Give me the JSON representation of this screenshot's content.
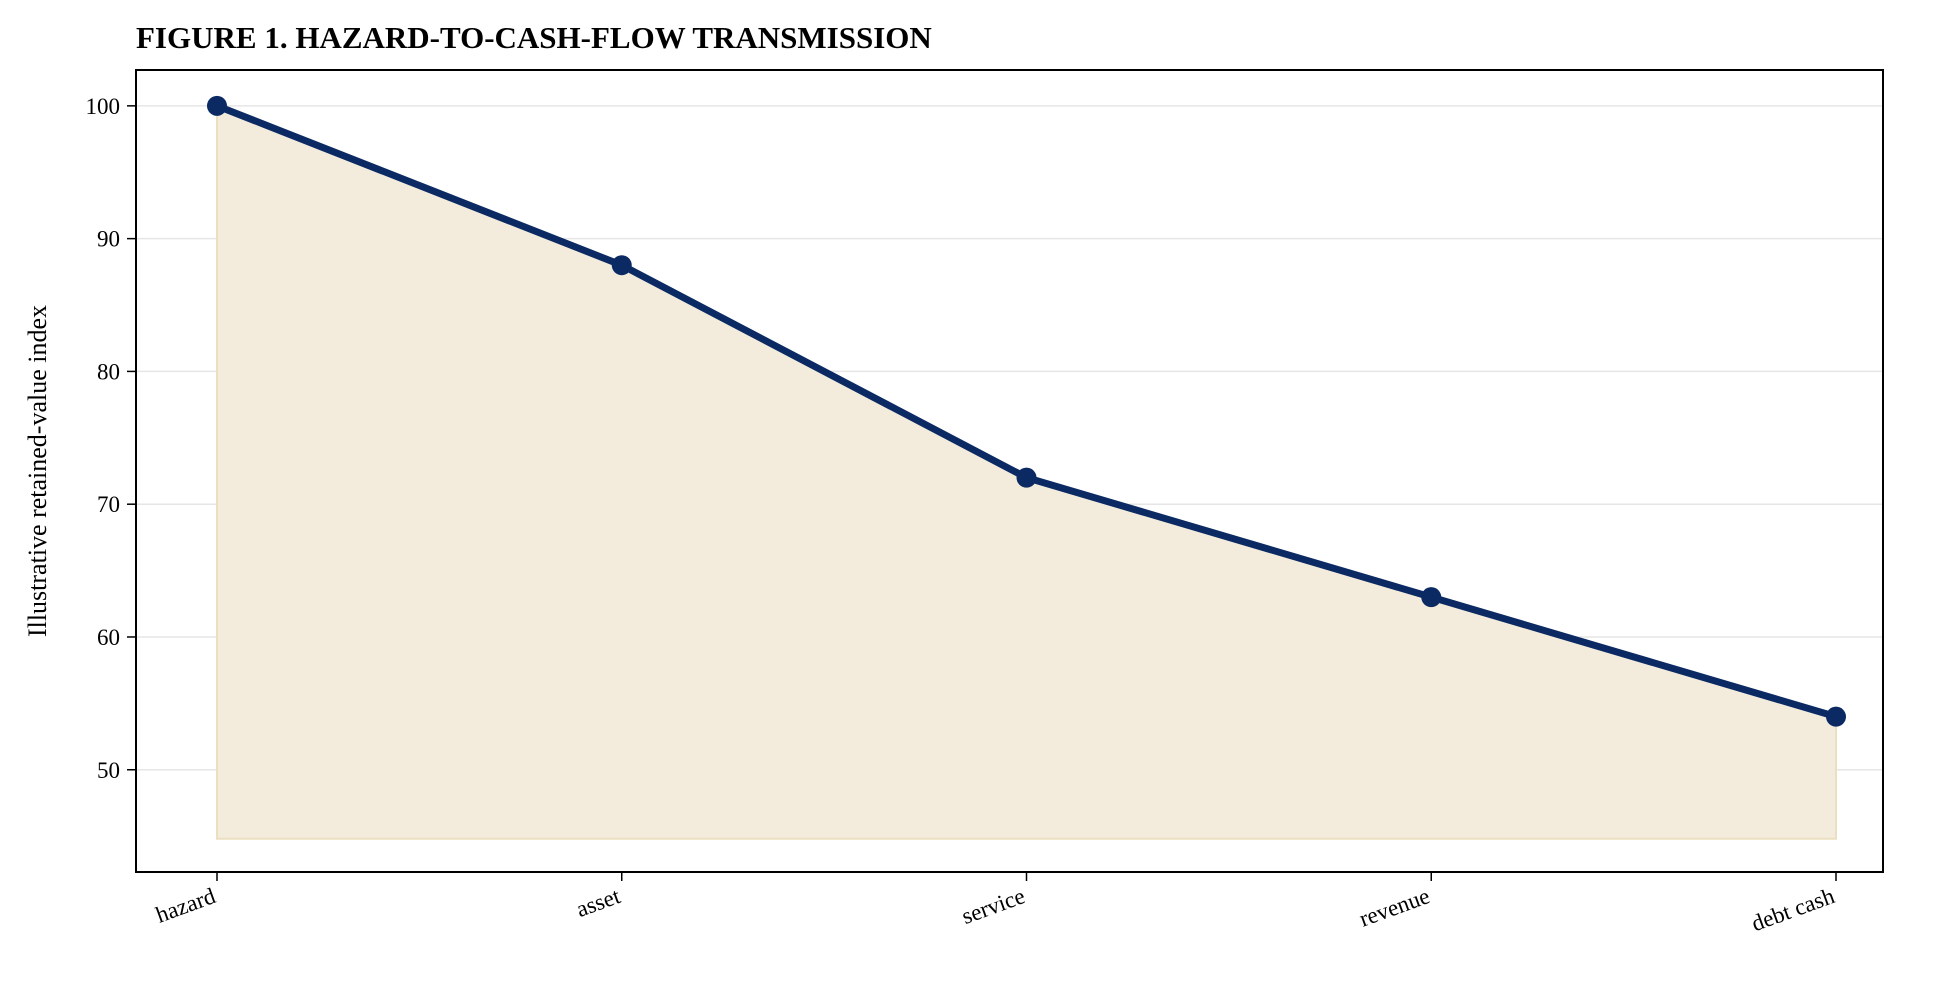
{
  "chart_data": {
    "type": "area",
    "title": "FIGURE 1. HAZARD-TO-CASH-FLOW TRANSMISSION",
    "xlabel": "",
    "ylabel": "Illustrative retained-value index",
    "categories": [
      "hazard",
      "asset",
      "service",
      "revenue",
      "debt cash"
    ],
    "values": [
      100,
      88,
      72,
      63,
      54
    ],
    "ylim": [
      42.3,
      102.7
    ],
    "fill_baseline": 44.8,
    "yticks": [
      50,
      60,
      70,
      80,
      90,
      100
    ],
    "grid": "horizontal",
    "line_color": "#0b2a63",
    "fill_color": "#f3ecdc",
    "fill_edge_color": "#ecdfc0"
  }
}
